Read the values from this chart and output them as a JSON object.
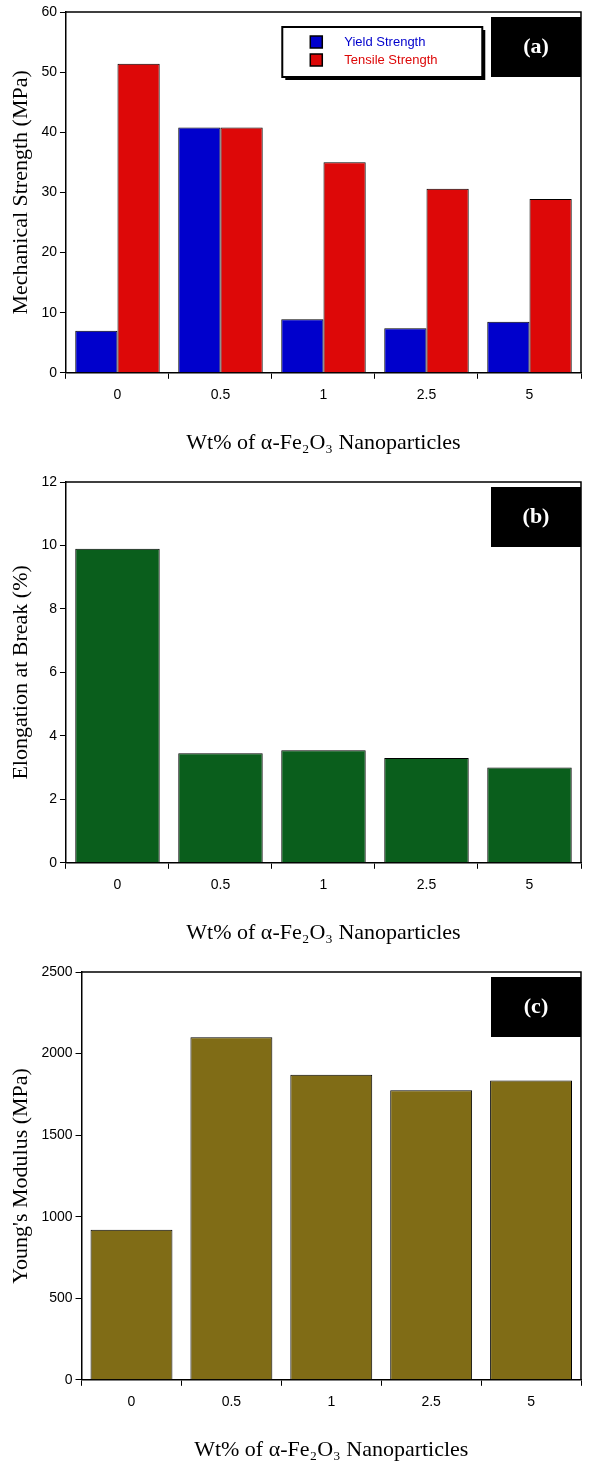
{
  "chart_data": [
    {
      "type": "bar",
      "xlabel": "Wt% of α-Fe₂O₃ Nanoparticles",
      "ylabel": "Mechanical Strength (MPa)",
      "categories": [
        "0",
        "0.5",
        "1",
        "2.5",
        "5"
      ],
      "series": [
        {
          "name": "Yield Strength",
          "color": "#0000cc",
          "values": [
            7,
            40.8,
            8.9,
            7.4,
            8.5
          ]
        },
        {
          "name": "Tensile Strength",
          "color": "#dd0808",
          "values": [
            51.4,
            40.8,
            35,
            30.6,
            28.9
          ]
        }
      ],
      "ylim": [
        0,
        60
      ],
      "yticks": [
        0,
        10,
        20,
        30,
        40,
        50,
        60
      ],
      "grid": false,
      "legend": "top right",
      "annotations": [
        "(a)"
      ]
    },
    {
      "type": "bar",
      "xlabel": "Wt% of α-Fe₂O₃ Nanoparticles",
      "ylabel": "Elongation at Break (%)",
      "categories": [
        "0",
        "0.5",
        "1",
        "2.5",
        "5"
      ],
      "values": [
        9.9,
        3.45,
        3.55,
        3.3,
        3.0
      ],
      "color": "#0a5e1c",
      "ylim": [
        0,
        12
      ],
      "yticks": [
        0,
        2,
        4,
        6,
        8,
        10,
        12
      ],
      "grid": false,
      "annotations": [
        "(b)"
      ]
    },
    {
      "type": "bar",
      "xlabel": "Wt% of α-Fe₂O₃ Nanoparticles",
      "ylabel": "Young's Modulus (MPa)",
      "categories": [
        "0",
        "0.5",
        "1",
        "2.5",
        "5"
      ],
      "values": [
        920,
        2100,
        1870,
        1775,
        1835
      ],
      "color": "#806c16",
      "ylim": [
        0,
        2500
      ],
      "yticks": [
        0,
        500,
        1000,
        1500,
        2000,
        2500
      ],
      "grid": false,
      "annotations": [
        "(c)"
      ]
    }
  ]
}
